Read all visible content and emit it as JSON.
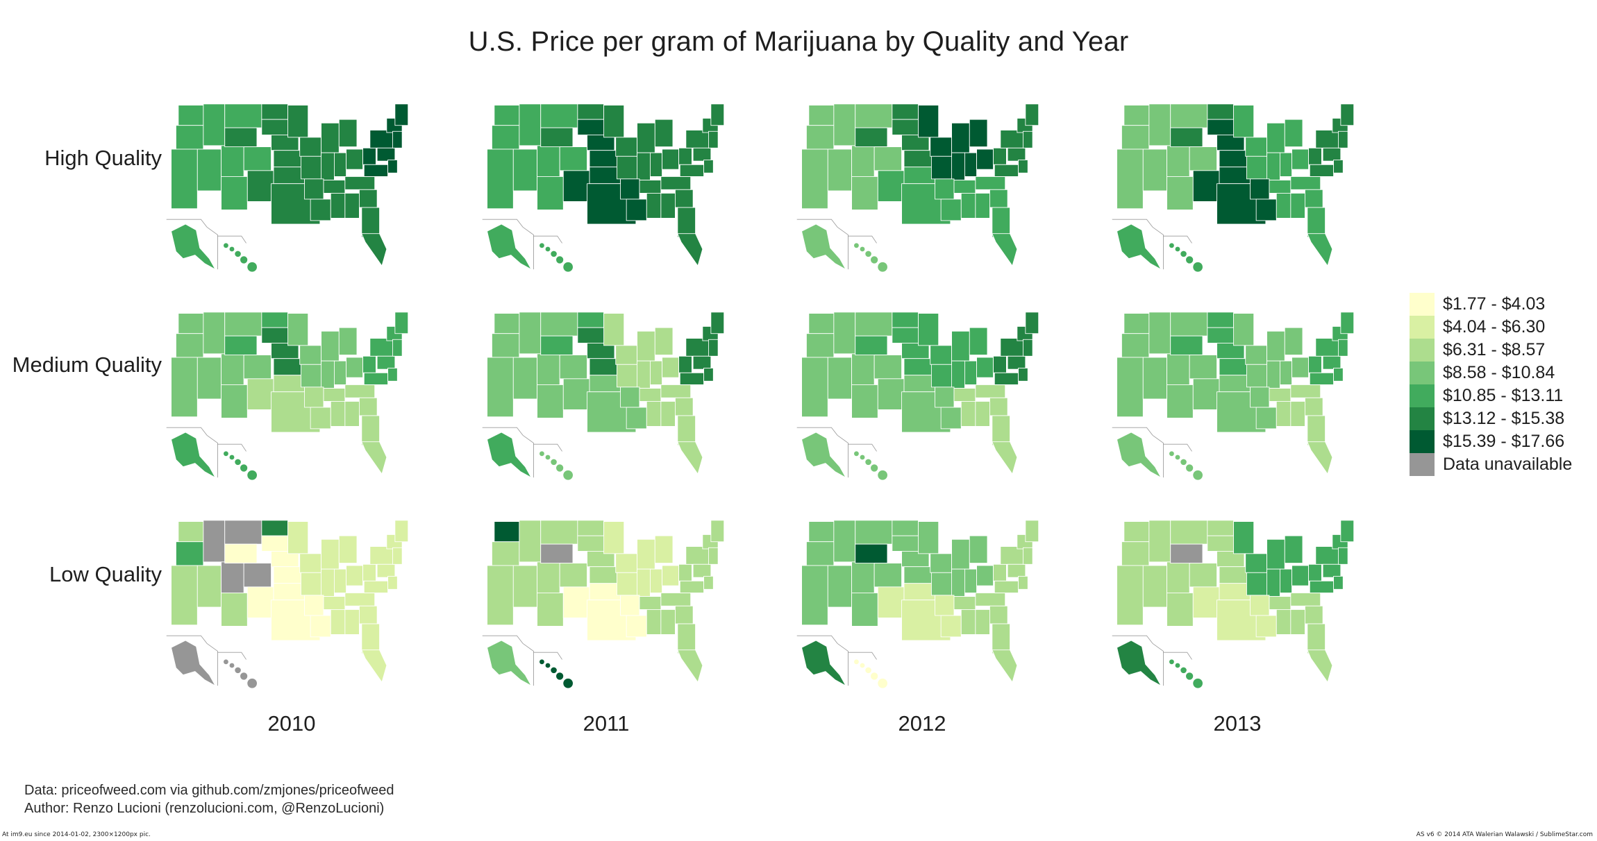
{
  "title": "U.S. Price per gram of Marijuana by Quality and Year",
  "row_labels": [
    "High Quality",
    "Medium Quality",
    "Low Quality"
  ],
  "col_labels": [
    "2010",
    "2011",
    "2012",
    "2013"
  ],
  "legend": [
    {
      "label": "$1.77 - $4.03",
      "color": "#ffffcc"
    },
    {
      "label": "$4.04 - $6.30",
      "color": "#d9f0a3"
    },
    {
      "label": "$6.31 - $8.57",
      "color": "#addd8e"
    },
    {
      "label": "$8.58 - $10.84",
      "color": "#78c679"
    },
    {
      "label": "$10.85 - $13.11",
      "color": "#41ab5d"
    },
    {
      "label": "$13.12 - $15.38",
      "color": "#238443"
    },
    {
      "label": "$15.39 - $17.66",
      "color": "#005a32"
    },
    {
      "label": "Data unavailable",
      "color": "#969696"
    }
  ],
  "footer": {
    "data_line": "Data: priceofweed.com via github.com/zmjones/priceofweed",
    "author_line": "Author: Renzo Lucioni (renzolucioni.com, @RenzoLucioni)"
  },
  "watermark": {
    "left": "At im9.eu  since 2014-01-02, 2300×1200px pic.",
    "right": "AS v6 © 2014 ATA Walerian Walawski / SublimeStar.com"
  },
  "maps": [
    {
      "quality": "High Quality",
      "year": "2010",
      "base": 5,
      "west": 4,
      "ne": 6,
      "south": 5,
      "plains": 5,
      "mw": 5,
      "se": 5,
      "alaska": 4,
      "hawaii": 4,
      "accents": [
        {
          "r": "ne",
          "c": 6
        },
        {
          "r": "south",
          "c": 5
        }
      ]
    },
    {
      "quality": "High Quality",
      "year": "2011",
      "base": 5,
      "west": 4,
      "ne": 5,
      "south": 5,
      "plains": 5,
      "mw": 5,
      "se": 5,
      "alaska": 4,
      "hawaii": 4,
      "accents": [
        {
          "r": "plains",
          "c": 6
        },
        {
          "r": "south",
          "c": 6
        }
      ]
    },
    {
      "quality": "High Quality",
      "year": "2012",
      "base": 4,
      "west": 3,
      "ne": 5,
      "south": 4,
      "plains": 5,
      "mw": 5,
      "se": 4,
      "alaska": 3,
      "hawaii": 3,
      "accents": [
        {
          "r": "mw",
          "c": 6
        }
      ]
    },
    {
      "quality": "High Quality",
      "year": "2013",
      "base": 4,
      "west": 3,
      "ne": 5,
      "south": 4,
      "plains": 5,
      "mw": 4,
      "se": 4,
      "alaska": 4,
      "hawaii": 4,
      "accents": [
        {
          "r": "plains",
          "c": 6
        },
        {
          "r": "south",
          "c": 6
        }
      ]
    },
    {
      "quality": "Medium Quality",
      "year": "2010",
      "base": 3,
      "west": 3,
      "ne": 4,
      "south": 2,
      "plains": 4,
      "mw": 3,
      "se": 2,
      "alaska": 4,
      "hawaii": 4,
      "accents": [
        {
          "r": "plains",
          "c": 5
        }
      ]
    },
    {
      "quality": "Medium Quality",
      "year": "2011",
      "base": 3,
      "west": 3,
      "ne": 4,
      "south": 3,
      "plains": 4,
      "mw": 2,
      "se": 2,
      "alaska": 4,
      "hawaii": 3,
      "accents": [
        {
          "r": "plains",
          "c": 5
        },
        {
          "r": "ne",
          "c": 5
        }
      ]
    },
    {
      "quality": "Medium Quality",
      "year": "2012",
      "base": 3,
      "west": 3,
      "ne": 4,
      "south": 3,
      "plains": 4,
      "mw": 4,
      "se": 2,
      "alaska": 3,
      "hawaii": 3,
      "accents": [
        {
          "r": "ne",
          "c": 5
        }
      ]
    },
    {
      "quality": "Medium Quality",
      "year": "2013",
      "base": 3,
      "west": 3,
      "ne": 4,
      "south": 3,
      "plains": 4,
      "mw": 3,
      "se": 2,
      "alaska": 3,
      "hawaii": 3,
      "accents": [
        {
          "r": "plains",
          "c": 4
        }
      ]
    },
    {
      "quality": "Low Quality",
      "year": "2010",
      "base": 1,
      "west": 2,
      "ne": 1,
      "south": 0,
      "plains": 0,
      "mw": 1,
      "se": 1,
      "alaska": 7,
      "hawaii": 7,
      "accents": [
        {
          "r": "mountain",
          "c": 7
        },
        {
          "r": "nd",
          "c": 5
        },
        {
          "r": "or",
          "c": 4
        }
      ]
    },
    {
      "quality": "Low Quality",
      "year": "2011",
      "base": 1,
      "west": 2,
      "ne": 2,
      "south": 0,
      "plains": 2,
      "mw": 1,
      "se": 2,
      "alaska": 3,
      "hawaii": 6,
      "accents": [
        {
          "r": "wa",
          "c": 6
        },
        {
          "r": "wyo",
          "c": 7
        }
      ]
    },
    {
      "quality": "Low Quality",
      "year": "2012",
      "base": 2,
      "west": 3,
      "ne": 2,
      "south": 1,
      "plains": 3,
      "mw": 3,
      "se": 2,
      "alaska": 5,
      "hawaii": 0,
      "accents": [
        {
          "r": "wyo",
          "c": 6
        },
        {
          "r": "north",
          "c": 4
        }
      ]
    },
    {
      "quality": "Low Quality",
      "year": "2013",
      "base": 2,
      "west": 2,
      "ne": 2,
      "south": 1,
      "plains": 2,
      "mw": 2,
      "se": 2,
      "alaska": 5,
      "hawaii": 4,
      "accents": [
        {
          "r": "wyo",
          "c": 7
        },
        {
          "r": "mw",
          "c": 4
        },
        {
          "r": "ne",
          "c": 4
        }
      ]
    }
  ]
}
